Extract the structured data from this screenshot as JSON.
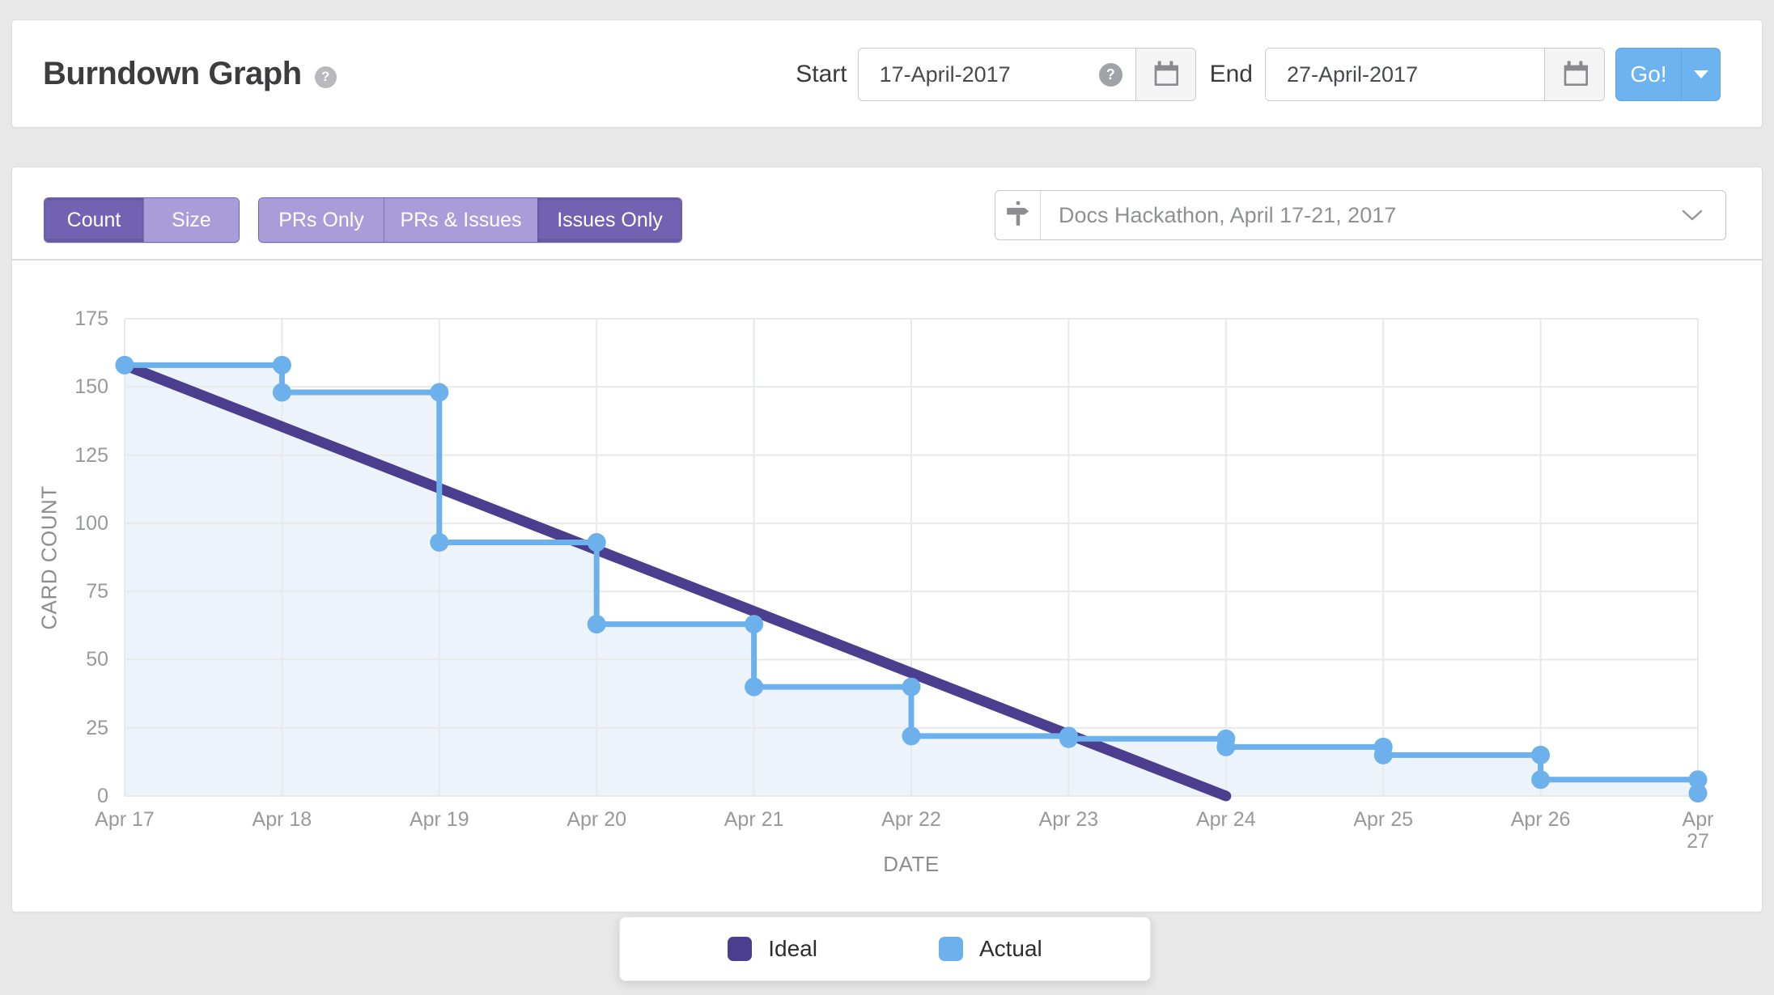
{
  "header": {
    "title": "Burndown Graph",
    "help_glyph": "?",
    "start_label": "Start",
    "start_value": "17-April-2017",
    "end_label": "End",
    "end_value": "27-April-2017",
    "go_label": "Go!"
  },
  "toolbar": {
    "metric_toggle": [
      {
        "label": "Count",
        "active": true
      },
      {
        "label": "Size",
        "active": false
      }
    ],
    "scope_toggle": [
      {
        "label": "PRs Only",
        "active": false
      },
      {
        "label": "PRs & Issues",
        "active": false
      },
      {
        "label": "Issues Only",
        "active": true
      }
    ],
    "milestone_select": {
      "icon": "milestone-signpost",
      "value": "Docs Hackathon, April 17-21, 2017"
    }
  },
  "chart_data": {
    "type": "line",
    "title": "Burndown Graph",
    "xlabel": "DATE",
    "ylabel": "CARD COUNT",
    "categories": [
      "Apr 17",
      "Apr 18",
      "Apr 19",
      "Apr 20",
      "Apr 21",
      "Apr 22",
      "Apr 23",
      "Apr 24",
      "Apr 25",
      "Apr 26",
      "Apr 27"
    ],
    "ylim": [
      0,
      175
    ],
    "ytick_step": 25,
    "grid": true,
    "legend_position": "bottom",
    "colors": {
      "grid": "#e7e9eb",
      "area_fill": "#edf3fa",
      "tick_text": "#98999d"
    },
    "series": [
      {
        "name": "Ideal",
        "style": "straight",
        "color": "#4b3e8f",
        "x": [
          "Apr 17",
          "Apr 24"
        ],
        "values": [
          158,
          0
        ]
      },
      {
        "name": "Actual",
        "style": "step-after",
        "color": "#6cb1ec",
        "x": [
          "Apr 17",
          "Apr 18",
          "Apr 19",
          "Apr 20",
          "Apr 21",
          "Apr 22",
          "Apr 23",
          "Apr 24",
          "Apr 25",
          "Apr 26",
          "Apr 27"
        ],
        "values": [
          158,
          148,
          93,
          63,
          40,
          22,
          21,
          18,
          15,
          6,
          1
        ]
      }
    ]
  }
}
